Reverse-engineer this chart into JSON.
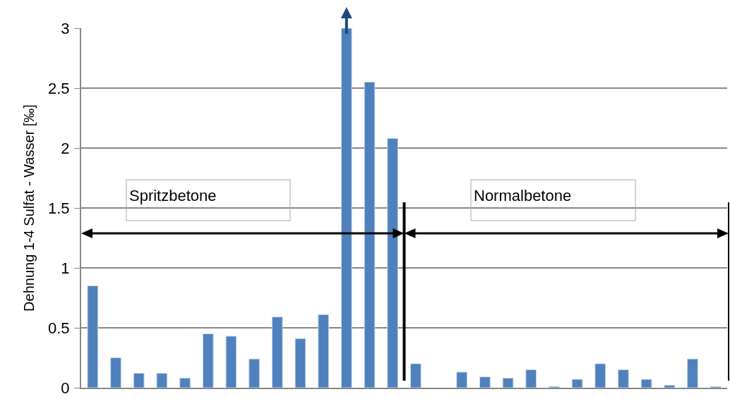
{
  "chart_data": {
    "type": "bar",
    "ylabel": "Dehnung 1-4 Sulfat - Wasser [‰]",
    "categories": [
      null,
      null,
      null,
      null,
      null,
      null,
      null,
      null,
      null,
      null,
      null,
      null,
      null,
      null,
      null,
      null,
      null,
      null,
      null,
      null,
      null,
      null,
      null,
      null,
      null,
      null,
      null,
      null
    ],
    "values": [
      0.85,
      0.25,
      0.12,
      0.12,
      0.08,
      0.45,
      0.43,
      0.24,
      0.59,
      0.41,
      0.61,
      3,
      2.55,
      2.08,
      0.2,
      null,
      0.13,
      0.09,
      0.08,
      0.15,
      0.01,
      0.07,
      0.2,
      0.15,
      0.07,
      0.02,
      0.24,
      0.01
    ],
    "color": "#4f81bd",
    "ylim": [
      0,
      3
    ],
    "yticks": [
      0,
      0.5,
      1,
      1.5,
      2,
      2.5,
      3
    ],
    "grid": "y",
    "legend": false,
    "annotations": [
      "Spritzbetone",
      "Normalbetone"
    ]
  }
}
